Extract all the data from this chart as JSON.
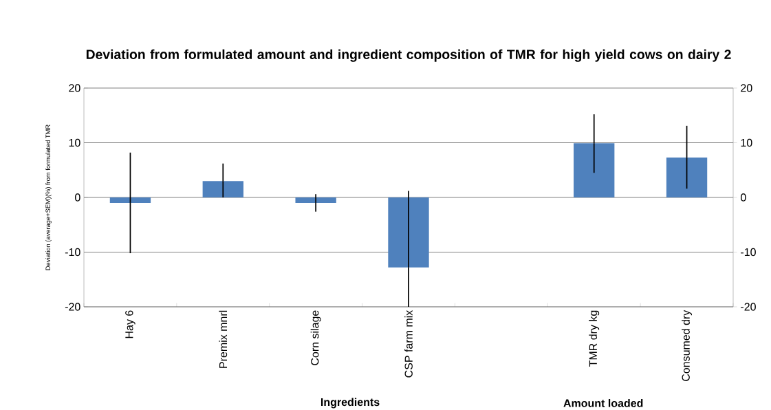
{
  "chart_data": {
    "type": "bar",
    "title": "Deviation from formulated amount and ingredient composition of TMR for high yield cows on dairy 2",
    "ylabel": "Deviation (average+SEM)(%) from formulated TMR",
    "categories": [
      "Hay 6",
      "Premix mnrl",
      "Corn silage",
      "CSP farm mix",
      null,
      "TMR dry kg",
      "Consumed dry"
    ],
    "values": [
      -1.0,
      3.0,
      -1.0,
      -12.8,
      null,
      9.9,
      7.3
    ],
    "errors": [
      [
        -10.2,
        8.2
      ],
      [
        0,
        6.2
      ],
      [
        -2.6,
        0.6
      ],
      [
        -20,
        1.2
      ],
      null,
      [
        4.5,
        15.2
      ],
      [
        1.6,
        13.1
      ]
    ],
    "color": "#4f81bd",
    "ylim": [
      -20,
      20
    ],
    "yticks": [
      -20,
      -10,
      0,
      10,
      20
    ],
    "y2lim": [
      -20,
      20
    ],
    "y2ticks": [
      -20,
      -10,
      0,
      10,
      20
    ],
    "grid": "y",
    "annotations": [
      "Ingredients",
      "Amount loaded"
    ]
  }
}
